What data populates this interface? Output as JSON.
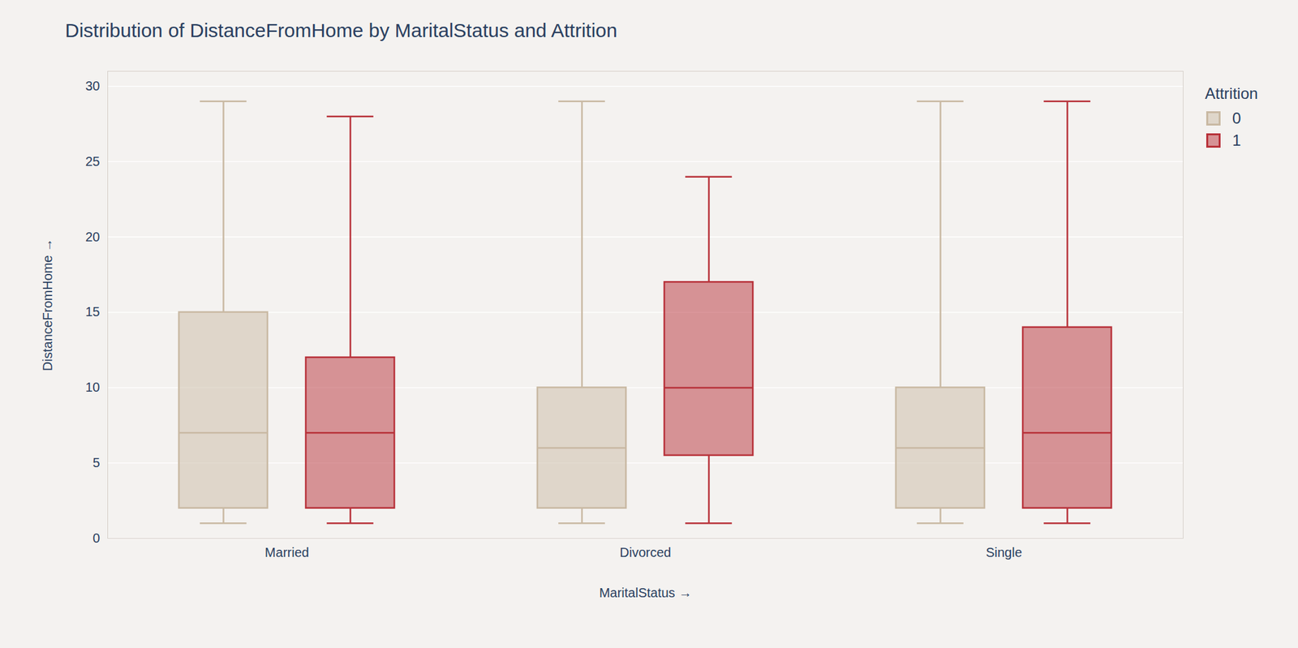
{
  "chart_data": {
    "type": "box",
    "title": "Distribution of DistanceFromHome by MaritalStatus and Attrition",
    "x_label": "MaritalStatus",
    "y_label": "DistanceFromHome",
    "categories": [
      "Married",
      "Divorced",
      "Single"
    ],
    "legend_title": "Attrition",
    "legend": "top-right",
    "series": [
      {
        "name": "0",
        "color": "#c9b9a3",
        "min": [
          1,
          1,
          1
        ],
        "q1": [
          2,
          2,
          2
        ],
        "median": [
          7,
          6,
          6
        ],
        "q3": [
          15,
          10,
          10
        ],
        "max": [
          29,
          29,
          29
        ]
      },
      {
        "name": "1",
        "color": "#b8323a",
        "min": [
          1,
          1,
          1
        ],
        "q1": [
          2,
          5.5,
          2
        ],
        "median": [
          7,
          10,
          7
        ],
        "q3": [
          12,
          17,
          14
        ],
        "max": [
          28,
          24,
          29
        ]
      }
    ],
    "ylim": [
      0,
      31
    ],
    "yticks": [
      0,
      5,
      10,
      15,
      20,
      25,
      30
    ],
    "grid": true
  }
}
